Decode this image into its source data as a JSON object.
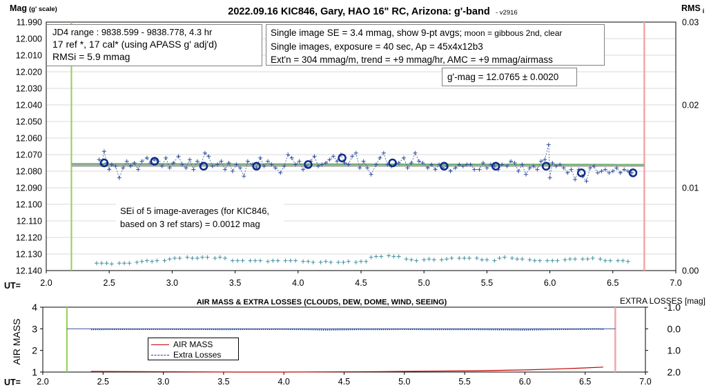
{
  "top_chart": {
    "title": "2022.09.16 KIC846, Gary, HAO 16\" RC, Arizona: g'-band",
    "version": "- v2916",
    "ylabel_main": "Mag",
    "ylabel_sub": "(g' scale)",
    "y2label_main": "RMS",
    "y2label_sub": "i",
    "xlabel": "UT=",
    "info_left": [
      "JD4 range : 9838.599 - 9838.778,  4.3 hr",
      "17 ref *, 17 cal* (using APASS g' adj'd)",
      "RMSi = 5.9 mmag"
    ],
    "info_right_line1_main": "Single image SE = 3.4 mmag, show  9-pt avgs;",
    "info_right_line1_small": " moon = gibbous 2nd, clear",
    "info_right_lines": [
      "Single images, exposure = 40 sec, Ap = 45x4x12b3",
      "Ext'n = 304 mmag/m, trend = +9 mmag/hr, AMC = +9 mmag/airmass"
    ],
    "gmag_label": "g'-mag = 12.0765 ± 0.0020",
    "sei_label": [
      "SEi of 5 image-averages (for KIC846,",
      "based on 3 ref stars) = 0.0012 mag"
    ]
  },
  "bottom_chart": {
    "title": "AIR MASS & EXTRA LOSSES (CLOUDS, DEW, DOME, WIND, SEEING)",
    "ylabel": "AIR MASS",
    "y2label": "EXTRA LOSSES [mag]",
    "xlabel": "UT=",
    "legend": [
      "AIR MASS",
      "Extra Losses"
    ]
  },
  "colors": {
    "points": "#2f4f9f",
    "avg": "#0b2a8a",
    "rms": "#3f8f9f",
    "mean": "#aaaaaa",
    "trend": "#70b070",
    "start": "#92d050",
    "end": "#f4a6a6",
    "airmass": "#c00000"
  },
  "chart_data": [
    {
      "type": "scatter",
      "title": "2022.09.16 KIC846, Gary, HAO 16\" RC, Arizona: g'-band",
      "xlabel": "UT=",
      "ylabel": "Mag (g' scale)",
      "y2label": "RMS i",
      "xlim": [
        2.0,
        7.0
      ],
      "ylim": [
        11.99,
        12.14
      ],
      "y_inverted": true,
      "y2lim": [
        0.0,
        0.03
      ],
      "x_ticks": [
        "2.0",
        "2.5",
        "3.0",
        "3.5",
        "4.0",
        "4.5",
        "5.0",
        "5.5",
        "6.0",
        "6.5",
        "7.0"
      ],
      "y_ticks": [
        "11.990",
        "12.000",
        "12.010",
        "12.020",
        "12.030",
        "12.040",
        "12.050",
        "12.060",
        "12.070",
        "12.080",
        "12.090",
        "12.100",
        "12.110",
        "12.120",
        "12.130",
        "12.140"
      ],
      "y2_ticks": [
        "0.00",
        "0.01",
        "0.02",
        "0.03"
      ],
      "grid": true,
      "series": [
        {
          "name": "single images",
          "x": [
            2.42,
            2.44,
            2.46,
            2.48,
            2.5,
            2.52,
            2.55,
            2.58,
            2.61,
            2.64,
            2.67,
            2.7,
            2.73,
            2.76,
            2.8,
            2.83,
            2.86,
            2.89,
            2.92,
            2.95,
            2.98,
            3.01,
            3.05,
            3.08,
            3.11,
            3.14,
            3.17,
            3.2,
            3.23,
            3.26,
            3.29,
            3.32,
            3.36,
            3.39,
            3.42,
            3.45,
            3.48,
            3.51,
            3.54,
            3.57,
            3.6,
            3.64,
            3.67,
            3.7,
            3.73,
            3.76,
            3.79,
            3.82,
            3.86,
            3.89,
            3.92,
            3.95,
            3.98,
            4.01,
            4.04,
            4.07,
            4.1,
            4.13,
            4.16,
            4.19,
            4.22,
            4.25,
            4.28,
            4.31,
            4.34,
            4.37,
            4.4,
            4.43,
            4.46,
            4.49,
            4.52,
            4.55,
            4.58,
            4.62,
            4.65,
            4.68,
            4.71,
            4.74,
            4.77,
            4.8,
            4.84,
            4.87,
            4.9,
            4.93,
            4.96,
            4.99,
            5.03,
            5.06,
            5.09,
            5.12,
            5.15,
            5.18,
            5.21,
            5.25,
            5.28,
            5.31,
            5.34,
            5.37,
            5.4,
            5.44,
            5.47,
            5.5,
            5.53,
            5.56,
            5.59,
            5.62,
            5.66,
            5.69,
            5.72,
            5.75,
            5.78,
            5.81,
            5.84,
            5.87,
            5.9,
            5.93,
            5.96,
            5.99,
            6.0,
            6.02,
            6.05,
            6.08,
            6.11,
            6.14,
            6.17,
            6.2,
            6.23,
            6.26,
            6.29,
            6.32,
            6.35,
            6.38,
            6.41,
            6.44,
            6.47,
            6.5,
            6.53,
            6.56,
            6.59,
            6.62,
            6.65
          ],
          "y": [
            12.073,
            12.076,
            12.068,
            12.075,
            12.079,
            12.076,
            12.077,
            12.084,
            12.078,
            12.074,
            12.077,
            12.075,
            12.079,
            12.074,
            12.072,
            12.075,
            12.073,
            12.074,
            12.077,
            12.072,
            12.078,
            12.075,
            12.071,
            12.076,
            12.078,
            12.073,
            12.079,
            12.074,
            12.076,
            12.069,
            12.071,
            12.077,
            12.076,
            12.074,
            12.079,
            12.075,
            12.08,
            12.076,
            12.078,
            12.083,
            12.074,
            12.076,
            12.078,
            12.072,
            12.077,
            12.074,
            12.076,
            12.078,
            12.081,
            12.077,
            12.07,
            12.072,
            12.076,
            12.074,
            12.079,
            12.077,
            12.074,
            12.071,
            12.077,
            12.076,
            12.075,
            12.073,
            12.071,
            12.074,
            12.07,
            12.075,
            12.076,
            12.071,
            12.069,
            12.078,
            12.074,
            12.078,
            12.082,
            12.076,
            12.072,
            12.069,
            12.076,
            12.077,
            12.076,
            12.075,
            12.072,
            12.078,
            12.075,
            12.069,
            12.074,
            12.075,
            12.078,
            12.076,
            12.079,
            12.076,
            12.078,
            12.077,
            12.08,
            12.078,
            12.076,
            12.077,
            12.076,
            12.076,
            12.079,
            12.079,
            12.075,
            12.078,
            12.076,
            12.077,
            12.079,
            12.076,
            12.077,
            12.074,
            12.075,
            12.08,
            12.076,
            12.082,
            12.078,
            12.077,
            12.079,
            12.074,
            12.073,
            12.064,
            12.084,
            12.075,
            12.077,
            12.076,
            12.078,
            12.081,
            12.079,
            12.085,
            12.079,
            12.083,
            12.086,
            12.078,
            12.077,
            12.081,
            12.08,
            12.079,
            12.081,
            12.08,
            12.078,
            12.081,
            12.079,
            12.08,
            12.081
          ]
        },
        {
          "name": "9-pt averages",
          "x": [
            2.46,
            2.86,
            3.25,
            3.67,
            4.08,
            4.35,
            4.75,
            5.16,
            5.57,
            5.97,
            6.25,
            6.66
          ],
          "y": [
            12.075,
            12.074,
            12.077,
            12.077,
            12.076,
            12.072,
            12.075,
            12.077,
            12.077,
            12.077,
            12.081,
            12.081
          ]
        },
        {
          "name": "mean",
          "x": [
            2.2,
            6.75
          ],
          "y": [
            12.0765,
            12.0765
          ]
        },
        {
          "name": "trend",
          "x": [
            2.2,
            6.75
          ],
          "y": [
            12.0755,
            12.076
          ]
        },
        {
          "name": "RMSi",
          "axis": "y2",
          "x": [
            2.4,
            2.44,
            2.48,
            2.52,
            2.58,
            2.62,
            2.66,
            2.72,
            2.76,
            2.8,
            2.84,
            2.88,
            2.94,
            2.98,
            3.02,
            3.06,
            3.12,
            3.16,
            3.2,
            3.24,
            3.28,
            3.34,
            3.38,
            3.42,
            3.48,
            3.52,
            3.56,
            3.62,
            3.66,
            3.7,
            3.76,
            3.8,
            3.84,
            3.9,
            3.94,
            3.98,
            4.04,
            4.08,
            4.12,
            4.18,
            4.22,
            4.26,
            4.32,
            4.36,
            4.4,
            4.46,
            4.5,
            4.54,
            4.58,
            4.62,
            4.66,
            4.72,
            4.76,
            4.8,
            4.86,
            4.9,
            4.94,
            5.0,
            5.04,
            5.08,
            5.14,
            5.18,
            5.22,
            5.28,
            5.32,
            5.36,
            5.42,
            5.46,
            5.5,
            5.56,
            5.6,
            5.64,
            5.7,
            5.74,
            5.78,
            5.84,
            5.88,
            5.92,
            5.98,
            6.02,
            6.06,
            6.12,
            6.16,
            6.2,
            6.26,
            6.3,
            6.34,
            6.4,
            6.44,
            6.48,
            6.54,
            6.58,
            6.62
          ],
          "y": [
            0.0009,
            0.0009,
            0.0009,
            0.0008,
            0.0009,
            0.0009,
            0.0009,
            0.001,
            0.0011,
            0.0012,
            0.0011,
            0.0012,
            0.0012,
            0.0014,
            0.0015,
            0.0015,
            0.0016,
            0.0015,
            0.0015,
            0.0016,
            0.0016,
            0.0015,
            0.0016,
            0.0015,
            0.0012,
            0.0012,
            0.0012,
            0.0012,
            0.0012,
            0.0012,
            0.0011,
            0.0012,
            0.0012,
            0.0012,
            0.0012,
            0.0012,
            0.0011,
            0.0011,
            0.001,
            0.001,
            0.0011,
            0.001,
            0.001,
            0.001,
            0.0011,
            0.001,
            0.0011,
            0.0011,
            0.0016,
            0.0017,
            0.0017,
            0.0018,
            0.0017,
            0.0017,
            0.0014,
            0.0013,
            0.0012,
            0.0013,
            0.0014,
            0.0013,
            0.0013,
            0.0014,
            0.0015,
            0.0015,
            0.0015,
            0.0015,
            0.0015,
            0.0013,
            0.0013,
            0.0012,
            0.0015,
            0.0016,
            0.0015,
            0.0014,
            0.0014,
            0.0013,
            0.0012,
            0.0012,
            0.0012,
            0.0012,
            0.0012,
            0.0013,
            0.0014,
            0.0014,
            0.0014,
            0.0014,
            0.0015,
            0.0014,
            0.0012,
            0.0012,
            0.0012,
            0.0012,
            0.0011
          ]
        }
      ],
      "markers": {
        "start_ut": 2.2,
        "end_ut": 6.75
      }
    },
    {
      "type": "line",
      "title": "AIR MASS & EXTRA LOSSES (CLOUDS, DEW, DOME, WIND, SEEING)",
      "xlabel": "UT=",
      "ylabel": "AIR MASS",
      "y2label": "EXTRA LOSSES [mag]",
      "xlim": [
        2.0,
        7.0
      ],
      "ylim": [
        1,
        4
      ],
      "y2lim": [
        -1.0,
        2.0
      ],
      "y2_inverted": true,
      "x_ticks": [
        "2.0",
        "2.5",
        "3.0",
        "3.5",
        "4.0",
        "4.5",
        "5.0",
        "5.5",
        "6.0",
        "6.5",
        "7.0"
      ],
      "y_ticks": [
        "1",
        "2",
        "3",
        "4"
      ],
      "y2_ticks": [
        "-1.0",
        "0.0",
        "1.0",
        "2.0"
      ],
      "legend_position": "left",
      "series": [
        {
          "name": "AIR MASS",
          "x": [
            2.4,
            2.8,
            3.2,
            3.6,
            4.0,
            4.4,
            4.8,
            5.2,
            5.6,
            6.0,
            6.3,
            6.5,
            6.65
          ],
          "y": [
            1.03,
            1.02,
            1.01,
            1.0,
            1.0,
            1.01,
            1.02,
            1.04,
            1.06,
            1.1,
            1.15,
            1.19,
            1.23
          ]
        },
        {
          "name": "Extra Losses",
          "x": [
            2.4,
            2.7,
            3.0,
            3.3,
            3.5,
            3.7,
            4.0,
            4.2,
            4.35,
            4.6,
            4.8,
            5.0,
            5.2,
            5.4,
            5.6,
            5.8,
            6.0,
            6.2,
            6.4,
            6.6,
            6.66
          ],
          "y": [
            0.03,
            0.02,
            0.02,
            0.02,
            0.03,
            0.02,
            0.02,
            0.03,
            0.05,
            0.03,
            0.03,
            0.02,
            0.03,
            0.03,
            0.03,
            0.04,
            0.05,
            0.03,
            0.02,
            0.01,
            0.02
          ]
        }
      ],
      "markers": {
        "start_ut": 2.2,
        "end_ut": 6.75
      }
    }
  ]
}
